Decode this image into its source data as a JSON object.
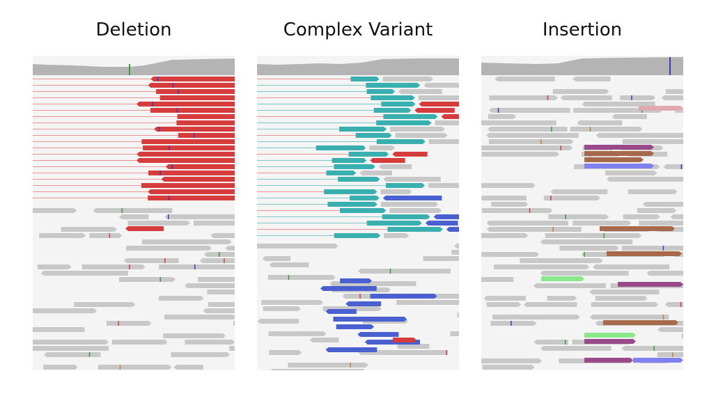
{
  "panels": [
    {
      "id": "deletion",
      "title": "Deletion",
      "accent": "#d63c3c",
      "accent_alt": "#d63c3c"
    },
    {
      "id": "complex",
      "title": "Complex Variant",
      "accent": "#3aafaf",
      "accent_alt": "#4a5fd0"
    },
    {
      "id": "insertion",
      "title": "Insertion",
      "accent": "#a85a5a",
      "accent_alt": "#8080f0"
    }
  ],
  "colors": {
    "read_gray": "#c8c8c8",
    "background": "#f4f4f4",
    "coverage": "#b4b4b4",
    "deletion_red": "#d63c3c",
    "complex_teal": "#3aafaf",
    "complex_blue": "#4a5fd0",
    "insertion_purple": "#9a4a8a",
    "insertion_brown": "#a8684a",
    "insertion_blue": "#8080f0",
    "insertion_green": "#8ae88a",
    "insertion_pink": "#e0a8b0"
  }
}
